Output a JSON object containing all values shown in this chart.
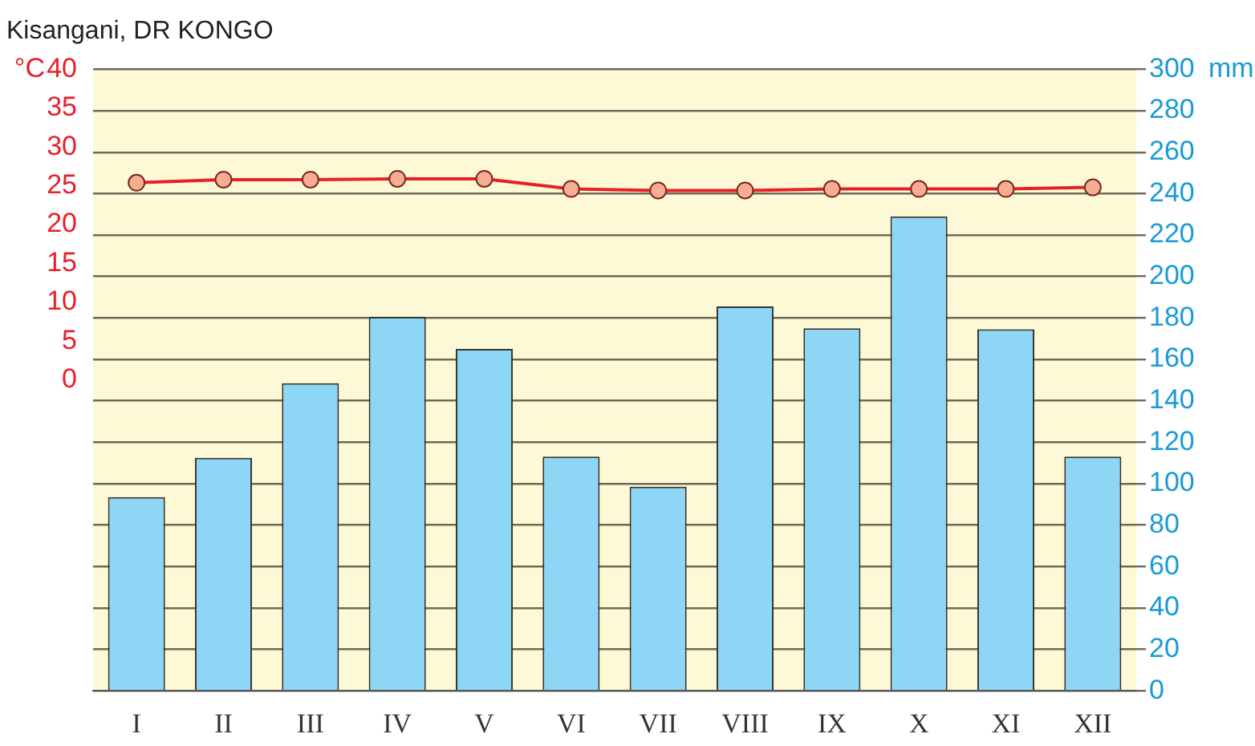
{
  "chart_data": {
    "type": "bar",
    "title": "Kisangani, DR KONGO",
    "ylabel": "°C",
    "y2label": "mm",
    "categories": [
      "I",
      "II",
      "III",
      "IV",
      "V",
      "VI",
      "VII",
      "VIII",
      "IX",
      "X",
      "XI",
      "XII"
    ],
    "series": [
      {
        "axis": "y2",
        "color": "#8ed6f5",
        "values": [
          93.5,
          112.5,
          148.5,
          180.5,
          165,
          113,
          98.5,
          185.5,
          175,
          229,
          174.5,
          113
        ]
      },
      {
        "type": "line",
        "axis": "y",
        "color": "#e8202a",
        "marker": "circle",
        "values": [
          25.4,
          25.8,
          25.8,
          25.9,
          25.9,
          24.6,
          24.4,
          24.4,
          24.6,
          24.6,
          24.6,
          24.8
        ]
      }
    ],
    "ylim": [
      -40,
      40
    ],
    "yticks": [
      0,
      5,
      10,
      15,
      20,
      25,
      30,
      35,
      40
    ],
    "y2lim": [
      0,
      300
    ],
    "y2ticks": [
      0,
      20,
      40,
      60,
      80,
      100,
      120,
      140,
      160,
      180,
      200,
      220,
      240,
      260,
      280,
      300
    ],
    "grid": true,
    "legend": false
  }
}
